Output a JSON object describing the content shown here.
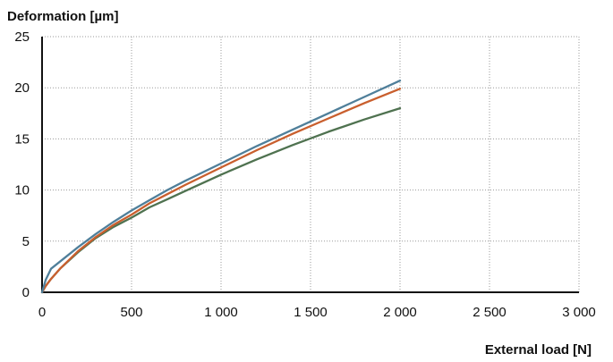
{
  "chart_data": {
    "type": "line",
    "ylabel": "Deformation [µm]",
    "xlabel": "External load [N]",
    "xlim": [
      0,
      3000
    ],
    "ylim": [
      0,
      25
    ],
    "grid": true,
    "x_ticks": [
      0,
      500,
      1000,
      1500,
      2000,
      2500,
      3000
    ],
    "x_tick_labels": [
      "0",
      "500",
      "1 000",
      "1 500",
      "2 000",
      "2 500",
      "3 000"
    ],
    "y_ticks": [
      0,
      5,
      10,
      15,
      20,
      25
    ],
    "y_tick_labels": [
      "0",
      "5",
      "10",
      "15",
      "20",
      "25"
    ],
    "series": [
      {
        "color": "#4f7f9a",
        "x": [
          0,
          20,
          50,
          100,
          200,
          300,
          400,
          500,
          600,
          700,
          800,
          1000,
          1200,
          1400,
          1600,
          1800,
          2000
        ],
        "y": [
          0,
          1.2,
          2.3,
          3.0,
          4.4,
          5.7,
          6.9,
          8.0,
          9.0,
          10.0,
          10.9,
          12.6,
          14.3,
          15.9,
          17.5,
          19.1,
          20.7
        ]
      },
      {
        "color": "#c95f2e",
        "x": [
          0,
          20,
          50,
          100,
          200,
          300,
          400,
          500,
          600,
          700,
          800,
          1000,
          1200,
          1400,
          1600,
          1800,
          2000
        ],
        "y": [
          0,
          0.6,
          1.3,
          2.3,
          4.0,
          5.4,
          6.6,
          7.6,
          8.7,
          9.6,
          10.5,
          12.2,
          13.9,
          15.5,
          17.0,
          18.5,
          19.9
        ]
      },
      {
        "color": "#4f7250",
        "x": [
          0,
          20,
          50,
          100,
          200,
          300,
          400,
          500,
          600,
          700,
          800,
          1000,
          1200,
          1400,
          1600,
          1800,
          2000
        ],
        "y": [
          0,
          0.6,
          1.3,
          2.3,
          3.9,
          5.3,
          6.4,
          7.3,
          8.3,
          9.1,
          9.9,
          11.5,
          13.0,
          14.4,
          15.7,
          16.9,
          18.0
        ]
      }
    ]
  }
}
